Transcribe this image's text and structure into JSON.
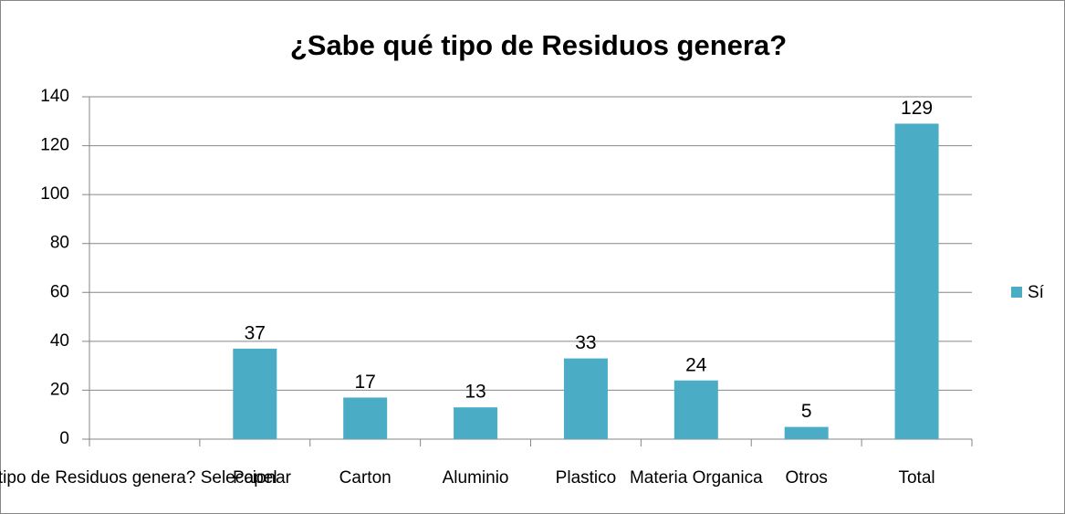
{
  "chart_data": {
    "type": "bar",
    "title": "¿Sabe qué tipo de Residuos genera?",
    "categories": [
      "tipo de Residuos genera? Seleccionar",
      "Papel",
      "Carton",
      "Aluminio",
      "Plastico",
      "Materia Organica",
      "Otros",
      "Total"
    ],
    "series": [
      {
        "name": "Sí",
        "color": "#4bacc6",
        "values": [
          null,
          37,
          17,
          13,
          33,
          24,
          5,
          129
        ]
      }
    ],
    "ylim": [
      0,
      140
    ],
    "yticks": [
      0,
      20,
      40,
      60,
      80,
      100,
      120,
      140
    ],
    "grid": true,
    "legend": "right"
  }
}
